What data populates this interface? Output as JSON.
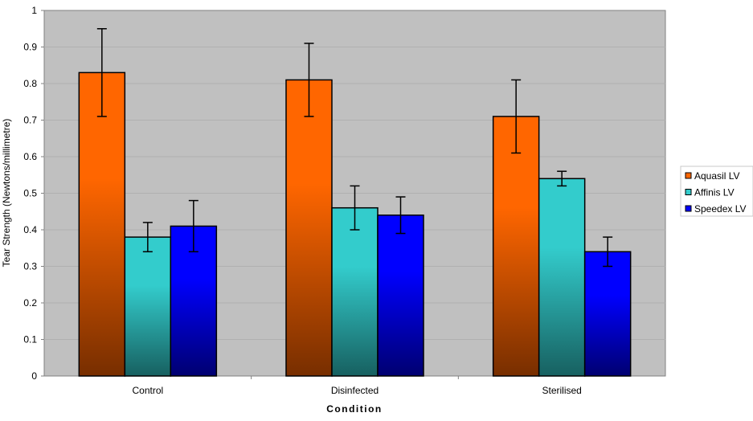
{
  "chart_data": {
    "type": "bar",
    "title": "",
    "xlabel": "Condition",
    "ylabel": "Tear Strength (Newtons/millimetre)",
    "ylim": [
      0,
      1
    ],
    "yticks": [
      "0",
      "0.1",
      "0.2",
      "0.3",
      "0.4",
      "0.5",
      "0.6",
      "0.7",
      "0.8",
      "0.9",
      "1"
    ],
    "grid": true,
    "legend_position": "right",
    "categories": [
      "Control",
      "Disinfected",
      "Sterilised"
    ],
    "series": [
      {
        "name": "Aquasil LV",
        "color": "#ff6600",
        "color_dark": "#772e00",
        "values": [
          0.83,
          0.81,
          0.71
        ],
        "err_high": [
          0.95,
          0.91,
          0.81
        ],
        "err_low": [
          0.71,
          0.71,
          0.61
        ]
      },
      {
        "name": "Affinis LV",
        "color": "#33cccc",
        "color_dark": "#176060",
        "values": [
          0.38,
          0.46,
          0.54
        ],
        "err_high": [
          0.42,
          0.52,
          0.56
        ],
        "err_low": [
          0.34,
          0.4,
          0.52
        ]
      },
      {
        "name": "Speedex LV",
        "color": "#0000ff",
        "color_dark": "#000070",
        "values": [
          0.41,
          0.44,
          0.34
        ],
        "err_high": [
          0.48,
          0.49,
          0.38
        ],
        "err_low": [
          0.34,
          0.39,
          0.3
        ]
      }
    ]
  }
}
